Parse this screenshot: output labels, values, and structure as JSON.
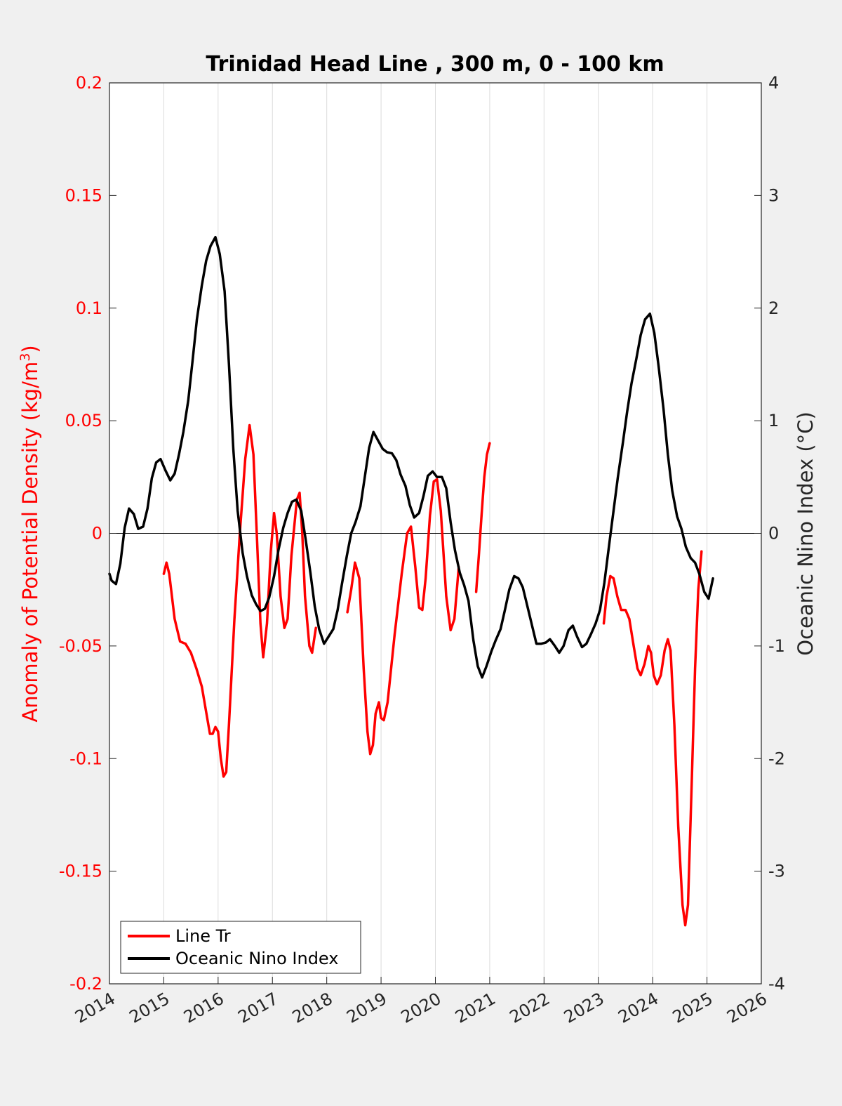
{
  "chart_data": {
    "type": "line",
    "title": "Trinidad Head Line , 300 m, 0 - 100 km",
    "x_ticks": [
      "2014",
      "2015",
      "2016",
      "2017",
      "2018",
      "2019",
      "2020",
      "2021",
      "2022",
      "2023",
      "2024",
      "2025",
      "2026"
    ],
    "xlim": [
      2014,
      2026
    ],
    "y_left": {
      "label_main": "Anomaly of Potential Density (kg/m",
      "label_sup": "3",
      "label_end": ")",
      "ylim": [
        -0.2,
        0.2
      ],
      "ticks": [
        "0.2",
        "0.15",
        "0.1",
        "0.05",
        "0",
        "-0.05",
        "-0.1",
        "-0.15",
        "-0.2"
      ],
      "tick_values": [
        0.2,
        0.15,
        0.1,
        0.05,
        0,
        -0.05,
        -0.1,
        -0.15,
        -0.2
      ],
      "color": "#ff0000"
    },
    "y_right": {
      "label": "Oceanic Nino Index (°C)",
      "ylim": [
        -4,
        4
      ],
      "ticks": [
        "4",
        "3",
        "2",
        "1",
        "0",
        "-1",
        "-2",
        "-3",
        "-4"
      ],
      "tick_values": [
        4,
        3,
        2,
        1,
        0,
        -1,
        -2,
        -3,
        -4
      ],
      "color": "#000000"
    },
    "legend": {
      "placement": "bottom-left",
      "entries": [
        "Line Tr",
        "Oceanic Nino Index"
      ]
    },
    "grid": "vertical",
    "series": [
      {
        "name": "Line Tr",
        "axis": "left",
        "color": "#ff0000",
        "segments": [
          [
            [
              2015.0,
              -0.018
            ],
            [
              2015.05,
              -0.013
            ],
            [
              2015.1,
              -0.018
            ],
            [
              2015.2,
              -0.038
            ],
            [
              2015.3,
              -0.048
            ],
            [
              2015.4,
              -0.049
            ],
            [
              2015.5,
              -0.053
            ],
            [
              2015.6,
              -0.06
            ],
            [
              2015.7,
              -0.068
            ],
            [
              2015.8,
              -0.082
            ],
            [
              2015.85,
              -0.089
            ],
            [
              2015.9,
              -0.089
            ],
            [
              2015.95,
              -0.086
            ],
            [
              2016.0,
              -0.088
            ],
            [
              2016.05,
              -0.1
            ],
            [
              2016.1,
              -0.108
            ],
            [
              2016.15,
              -0.106
            ],
            [
              2016.2,
              -0.085
            ],
            [
              2016.3,
              -0.038
            ],
            [
              2016.4,
              0.0
            ],
            [
              2016.5,
              0.033
            ],
            [
              2016.58,
              0.048
            ],
            [
              2016.65,
              0.035
            ],
            [
              2016.72,
              -0.005
            ],
            [
              2016.78,
              -0.04
            ],
            [
              2016.83,
              -0.055
            ],
            [
              2016.9,
              -0.04
            ],
            [
              2016.97,
              -0.008
            ],
            [
              2017.03,
              0.009
            ],
            [
              2017.08,
              0.0
            ],
            [
              2017.15,
              -0.028
            ],
            [
              2017.22,
              -0.042
            ],
            [
              2017.28,
              -0.038
            ],
            [
              2017.35,
              -0.01
            ],
            [
              2017.45,
              0.015
            ],
            [
              2017.5,
              0.018
            ],
            [
              2017.55,
              0.0
            ],
            [
              2017.6,
              -0.028
            ],
            [
              2017.68,
              -0.05
            ],
            [
              2017.73,
              -0.053
            ],
            [
              2017.8,
              -0.042
            ]
          ],
          [
            [
              2018.38,
              -0.035
            ],
            [
              2018.45,
              -0.025
            ],
            [
              2018.52,
              -0.013
            ],
            [
              2018.6,
              -0.02
            ],
            [
              2018.68,
              -0.06
            ],
            [
              2018.75,
              -0.088
            ],
            [
              2018.8,
              -0.098
            ],
            [
              2018.85,
              -0.094
            ],
            [
              2018.9,
              -0.08
            ],
            [
              2018.96,
              -0.075
            ],
            [
              2019.0,
              -0.082
            ],
            [
              2019.05,
              -0.083
            ],
            [
              2019.12,
              -0.075
            ],
            [
              2019.25,
              -0.045
            ],
            [
              2019.38,
              -0.018
            ],
            [
              2019.48,
              0.0
            ],
            [
              2019.55,
              0.003
            ],
            [
              2019.63,
              -0.015
            ],
            [
              2019.7,
              -0.033
            ],
            [
              2019.76,
              -0.034
            ],
            [
              2019.82,
              -0.02
            ],
            [
              2019.9,
              0.008
            ],
            [
              2019.97,
              0.023
            ],
            [
              2020.03,
              0.024
            ],
            [
              2020.1,
              0.01
            ],
            [
              2020.2,
              -0.028
            ],
            [
              2020.28,
              -0.043
            ],
            [
              2020.35,
              -0.038
            ],
            [
              2020.43,
              -0.015
            ]
          ],
          [
            [
              2020.75,
              -0.026
            ],
            [
              2020.8,
              -0.01
            ],
            [
              2020.85,
              0.008
            ],
            [
              2020.9,
              0.025
            ],
            [
              2020.95,
              0.035
            ],
            [
              2021.0,
              0.04
            ]
          ],
          [
            [
              2023.1,
              -0.04
            ],
            [
              2023.15,
              -0.028
            ],
            [
              2023.22,
              -0.019
            ],
            [
              2023.28,
              -0.02
            ],
            [
              2023.35,
              -0.028
            ],
            [
              2023.42,
              -0.034
            ],
            [
              2023.5,
              -0.034
            ],
            [
              2023.57,
              -0.038
            ],
            [
              2023.65,
              -0.05
            ],
            [
              2023.72,
              -0.06
            ],
            [
              2023.78,
              -0.063
            ],
            [
              2023.85,
              -0.058
            ],
            [
              2023.92,
              -0.05
            ],
            [
              2023.97,
              -0.053
            ],
            [
              2024.02,
              -0.063
            ],
            [
              2024.08,
              -0.067
            ],
            [
              2024.15,
              -0.063
            ],
            [
              2024.22,
              -0.052
            ],
            [
              2024.28,
              -0.047
            ],
            [
              2024.33,
              -0.052
            ],
            [
              2024.4,
              -0.085
            ],
            [
              2024.47,
              -0.13
            ],
            [
              2024.55,
              -0.165
            ],
            [
              2024.6,
              -0.174
            ],
            [
              2024.65,
              -0.165
            ],
            [
              2024.72,
              -0.11
            ],
            [
              2024.78,
              -0.06
            ],
            [
              2024.84,
              -0.025
            ],
            [
              2024.9,
              -0.008
            ]
          ]
        ]
      },
      {
        "name": "Oceanic Nino Index",
        "axis": "right",
        "color": "#000000",
        "segments": [
          [
            [
              2014.0,
              -0.36
            ],
            [
              2014.04,
              -0.42
            ],
            [
              2014.12,
              -0.45
            ],
            [
              2014.2,
              -0.27
            ],
            [
              2014.28,
              0.05
            ],
            [
              2014.36,
              0.22
            ],
            [
              2014.45,
              0.17
            ],
            [
              2014.53,
              0.04
            ],
            [
              2014.62,
              0.06
            ],
            [
              2014.7,
              0.22
            ],
            [
              2014.78,
              0.49
            ],
            [
              2014.86,
              0.63
            ],
            [
              2014.94,
              0.66
            ],
            [
              2015.03,
              0.56
            ],
            [
              2015.12,
              0.47
            ],
            [
              2015.2,
              0.53
            ],
            [
              2015.28,
              0.7
            ],
            [
              2015.36,
              0.9
            ],
            [
              2015.45,
              1.18
            ],
            [
              2015.53,
              1.53
            ],
            [
              2015.61,
              1.9
            ],
            [
              2015.7,
              2.2
            ],
            [
              2015.78,
              2.42
            ],
            [
              2015.86,
              2.55
            ],
            [
              2015.95,
              2.63
            ],
            [
              2016.03,
              2.48
            ],
            [
              2016.12,
              2.15
            ],
            [
              2016.2,
              1.5
            ],
            [
              2016.28,
              0.75
            ],
            [
              2016.36,
              0.2
            ],
            [
              2016.45,
              -0.17
            ],
            [
              2016.53,
              -0.38
            ],
            [
              2016.62,
              -0.55
            ],
            [
              2016.7,
              -0.63
            ],
            [
              2016.78,
              -0.69
            ],
            [
              2016.86,
              -0.67
            ],
            [
              2016.94,
              -0.57
            ],
            [
              2017.03,
              -0.38
            ],
            [
              2017.11,
              -0.15
            ],
            [
              2017.2,
              0.05
            ],
            [
              2017.28,
              0.18
            ],
            [
              2017.36,
              0.28
            ],
            [
              2017.44,
              0.3
            ],
            [
              2017.53,
              0.2
            ],
            [
              2017.61,
              -0.05
            ],
            [
              2017.7,
              -0.35
            ],
            [
              2017.78,
              -0.65
            ],
            [
              2017.86,
              -0.85
            ],
            [
              2017.95,
              -0.98
            ],
            [
              2018.03,
              -0.92
            ],
            [
              2018.12,
              -0.85
            ],
            [
              2018.2,
              -0.68
            ],
            [
              2018.28,
              -0.45
            ],
            [
              2018.37,
              -0.2
            ],
            [
              2018.45,
              0.0
            ],
            [
              2018.53,
              0.1
            ],
            [
              2018.62,
              0.24
            ],
            [
              2018.7,
              0.5
            ],
            [
              2018.78,
              0.76
            ],
            [
              2018.86,
              0.9
            ],
            [
              2018.95,
              0.82
            ],
            [
              2019.03,
              0.75
            ],
            [
              2019.11,
              0.72
            ],
            [
              2019.2,
              0.71
            ],
            [
              2019.28,
              0.65
            ],
            [
              2019.36,
              0.52
            ],
            [
              2019.45,
              0.42
            ],
            [
              2019.53,
              0.25
            ],
            [
              2019.61,
              0.14
            ],
            [
              2019.7,
              0.18
            ],
            [
              2019.78,
              0.33
            ],
            [
              2019.86,
              0.51
            ],
            [
              2019.95,
              0.55
            ],
            [
              2020.03,
              0.5
            ],
            [
              2020.12,
              0.5
            ],
            [
              2020.2,
              0.4
            ],
            [
              2020.28,
              0.1
            ],
            [
              2020.36,
              -0.15
            ],
            [
              2020.45,
              -0.35
            ],
            [
              2020.53,
              -0.46
            ],
            [
              2020.61,
              -0.6
            ],
            [
              2020.7,
              -0.95
            ],
            [
              2020.78,
              -1.18
            ],
            [
              2020.86,
              -1.28
            ],
            [
              2020.94,
              -1.18
            ],
            [
              2021.03,
              -1.05
            ],
            [
              2021.11,
              -0.95
            ],
            [
              2021.2,
              -0.85
            ],
            [
              2021.28,
              -0.68
            ],
            [
              2021.36,
              -0.5
            ],
            [
              2021.45,
              -0.38
            ],
            [
              2021.53,
              -0.4
            ],
            [
              2021.61,
              -0.48
            ],
            [
              2021.7,
              -0.66
            ],
            [
              2021.78,
              -0.82
            ],
            [
              2021.86,
              -0.98
            ],
            [
              2021.95,
              -0.98
            ],
            [
              2022.03,
              -0.97
            ],
            [
              2022.11,
              -0.94
            ],
            [
              2022.2,
              -1.0
            ],
            [
              2022.28,
              -1.06
            ],
            [
              2022.36,
              -1.0
            ],
            [
              2022.45,
              -0.86
            ],
            [
              2022.53,
              -0.82
            ],
            [
              2022.61,
              -0.92
            ],
            [
              2022.7,
              -1.01
            ],
            [
              2022.78,
              -0.98
            ],
            [
              2022.86,
              -0.9
            ],
            [
              2022.95,
              -0.8
            ],
            [
              2023.03,
              -0.68
            ],
            [
              2023.11,
              -0.44
            ],
            [
              2023.2,
              -0.1
            ],
            [
              2023.28,
              0.2
            ],
            [
              2023.36,
              0.5
            ],
            [
              2023.45,
              0.8
            ],
            [
              2023.53,
              1.08
            ],
            [
              2023.61,
              1.33
            ],
            [
              2023.7,
              1.55
            ],
            [
              2023.78,
              1.76
            ],
            [
              2023.86,
              1.9
            ],
            [
              2023.95,
              1.95
            ],
            [
              2024.03,
              1.78
            ],
            [
              2024.11,
              1.48
            ],
            [
              2024.2,
              1.1
            ],
            [
              2024.28,
              0.7
            ],
            [
              2024.36,
              0.38
            ],
            [
              2024.45,
              0.15
            ],
            [
              2024.53,
              0.04
            ],
            [
              2024.61,
              -0.12
            ],
            [
              2024.7,
              -0.22
            ],
            [
              2024.78,
              -0.26
            ],
            [
              2024.86,
              -0.36
            ],
            [
              2024.95,
              -0.52
            ],
            [
              2025.03,
              -0.58
            ],
            [
              2025.11,
              -0.4
            ]
          ]
        ]
      }
    ]
  }
}
